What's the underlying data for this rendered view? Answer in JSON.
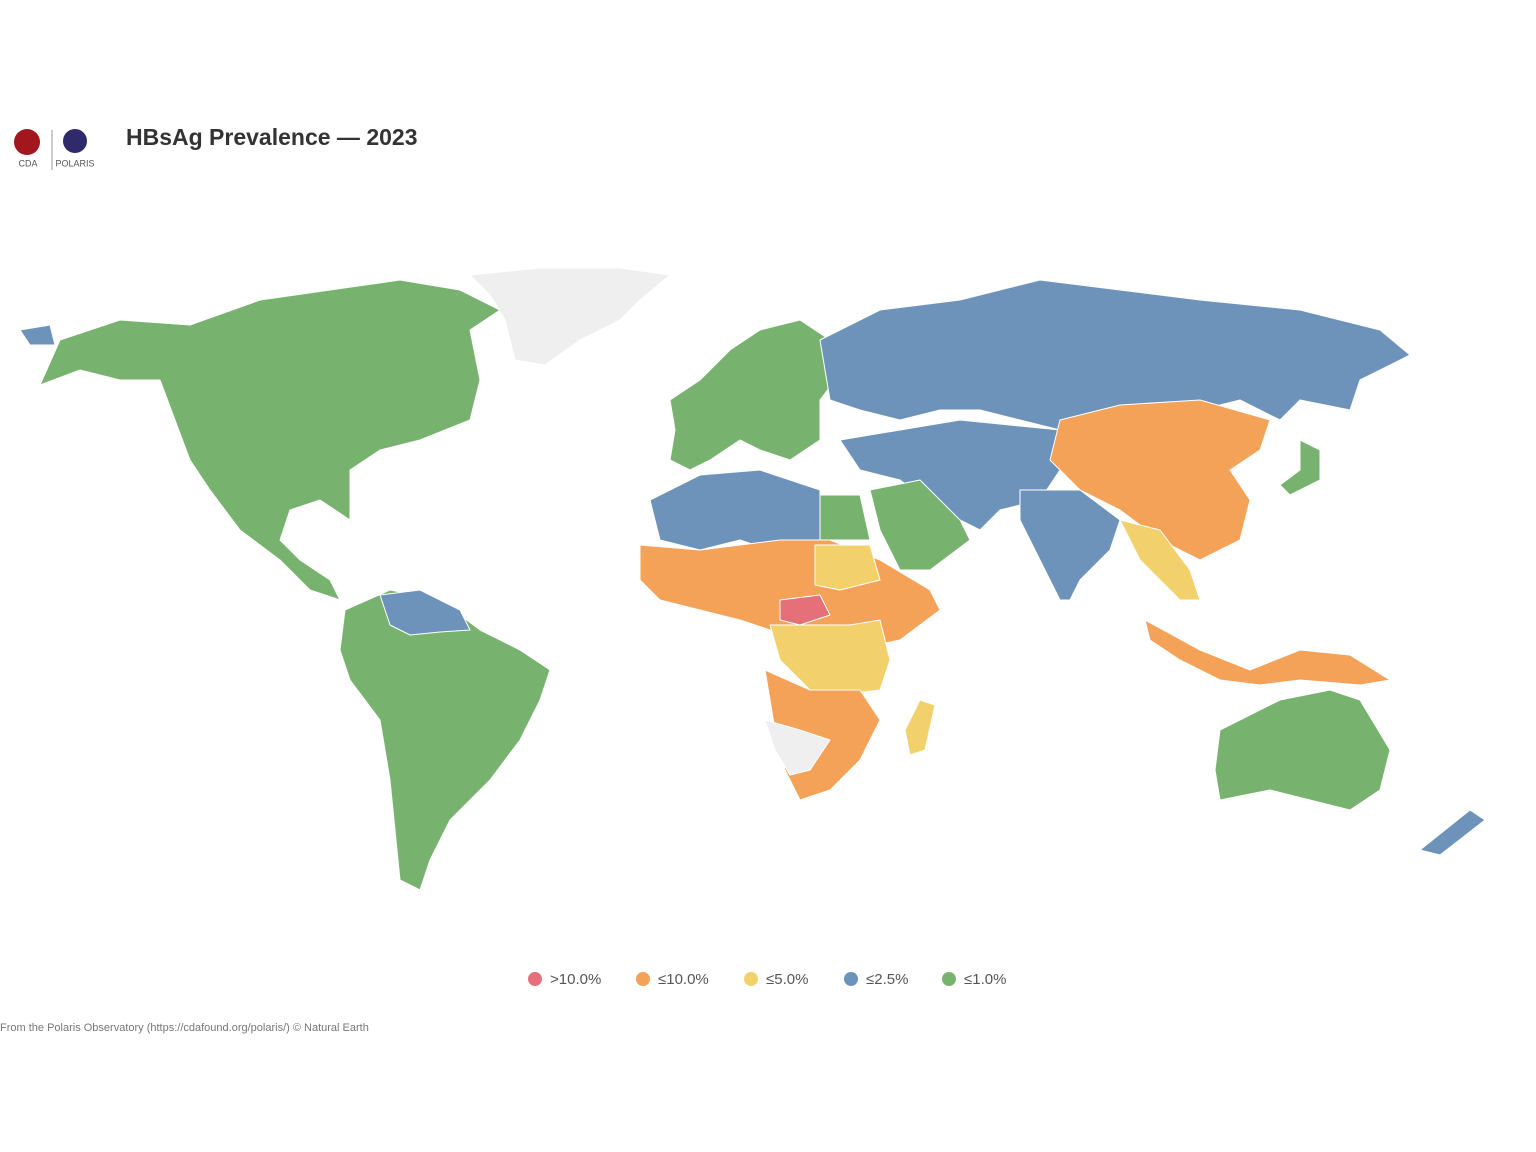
{
  "header": {
    "title": "HBsAg Prevalence — 2023",
    "logos": [
      "CDA",
      "POLARIS"
    ]
  },
  "legend": [
    {
      "label": ">10.0%",
      "color": "#e5707a"
    },
    {
      "label": "≤10.0%",
      "color": "#f4a257"
    },
    {
      "label": "≤5.0%",
      "color": "#f2d16c"
    },
    {
      "label": "≤2.5%",
      "color": "#6e93bb"
    },
    {
      "label": "≤1.0%",
      "color": "#78b26f"
    }
  ],
  "source": "From the Polaris Observatory (https://cdafound.org/polaris/) © Natural Earth"
}
